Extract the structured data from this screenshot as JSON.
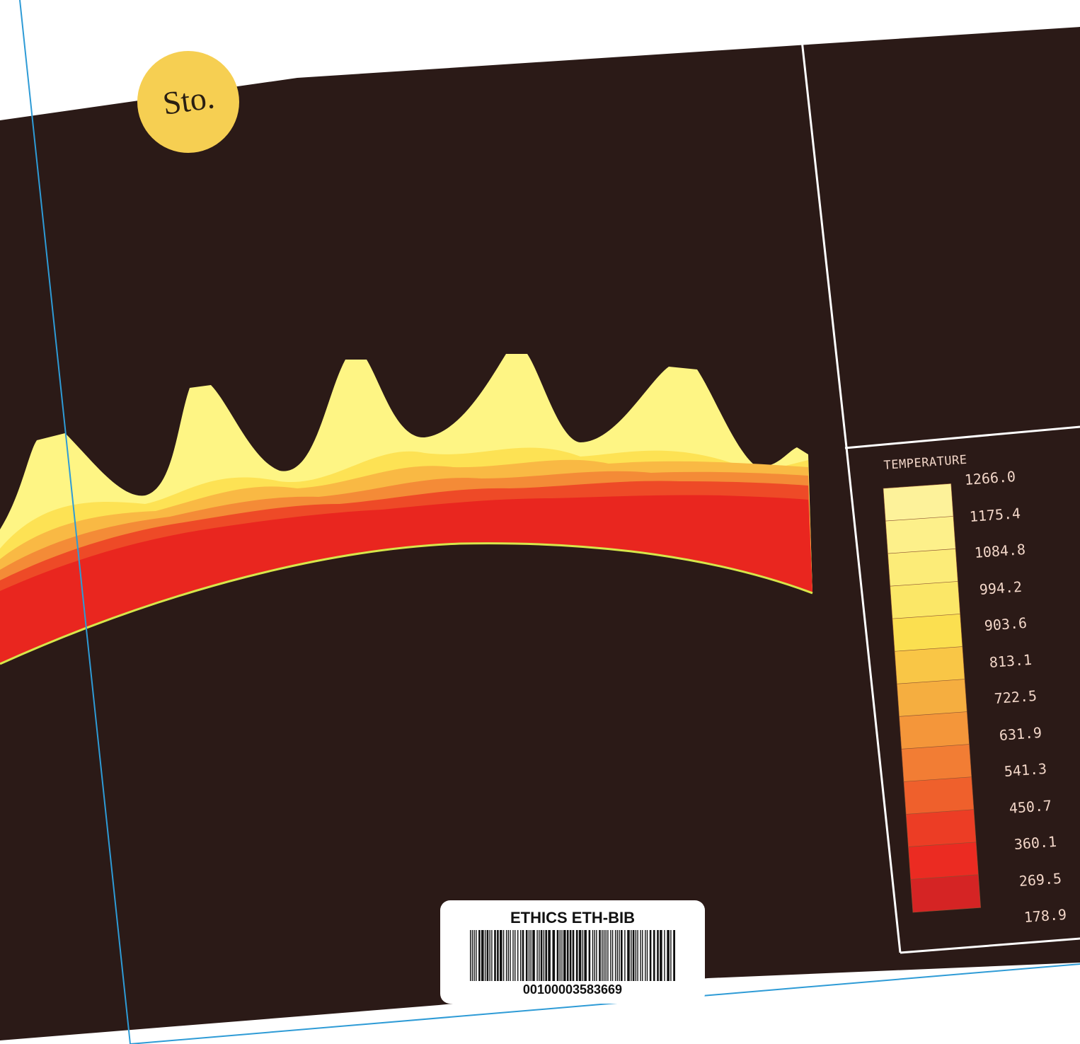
{
  "sticker": {
    "text": "Sto."
  },
  "legend": {
    "title": "TEMPERATURE",
    "values": [
      "1266.0",
      "1175.4",
      "1084.8",
      "994.2",
      "903.6",
      "813.1",
      "722.5",
      "631.9",
      "541.3",
      "450.7",
      "360.1",
      "269.5",
      "178.9"
    ],
    "band_colors": [
      "#fdf29a",
      "#fdf08a",
      "#fcec78",
      "#fbe767",
      "#fbdf50",
      "#f9c646",
      "#f5ae40",
      "#f4963a",
      "#f27d34",
      "#ef602c",
      "#ec3d25",
      "#eb2b22",
      "#d52424"
    ]
  },
  "field_colors": [
    "#fef584",
    "#fde254",
    "#f9b944",
    "#f48b37",
    "#ee4a27",
    "#e9261f"
  ],
  "colors": {
    "background": "#2b1a17",
    "frame_line": "#2e9bd6",
    "grid_line": "#ffffff",
    "boundary_line": "#d7e64a"
  },
  "label": {
    "title": "ETHICS ETH-BIB",
    "number": "00100003583669"
  }
}
